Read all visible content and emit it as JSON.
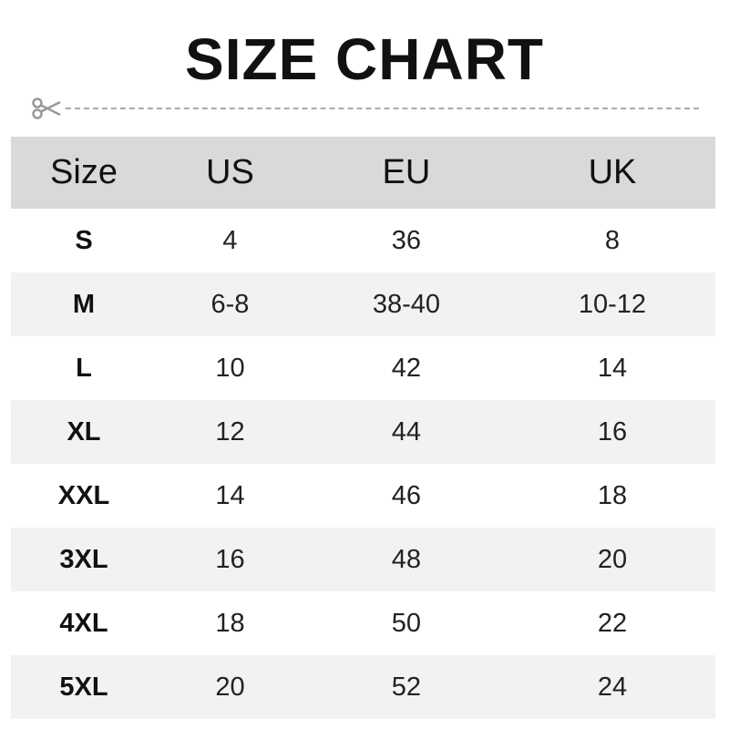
{
  "title": "SIZE CHART",
  "icons": {
    "cut": "scissors-icon"
  },
  "table": {
    "headers": [
      "Size",
      "US",
      "EU",
      "UK"
    ],
    "rows": [
      [
        "S",
        "4",
        "36",
        "8"
      ],
      [
        "M",
        "6-8",
        "38-40",
        "10-12"
      ],
      [
        "L",
        "10",
        "42",
        "14"
      ],
      [
        "XL",
        "12",
        "44",
        "16"
      ],
      [
        "XXL",
        "14",
        "46",
        "18"
      ],
      [
        "3XL",
        "16",
        "48",
        "20"
      ],
      [
        "4XL",
        "18",
        "50",
        "22"
      ],
      [
        "5XL",
        "20",
        "52",
        "24"
      ]
    ]
  },
  "colors": {
    "header_bg": "#d9d9d9",
    "stripe_bg": "#f2f2f2"
  }
}
